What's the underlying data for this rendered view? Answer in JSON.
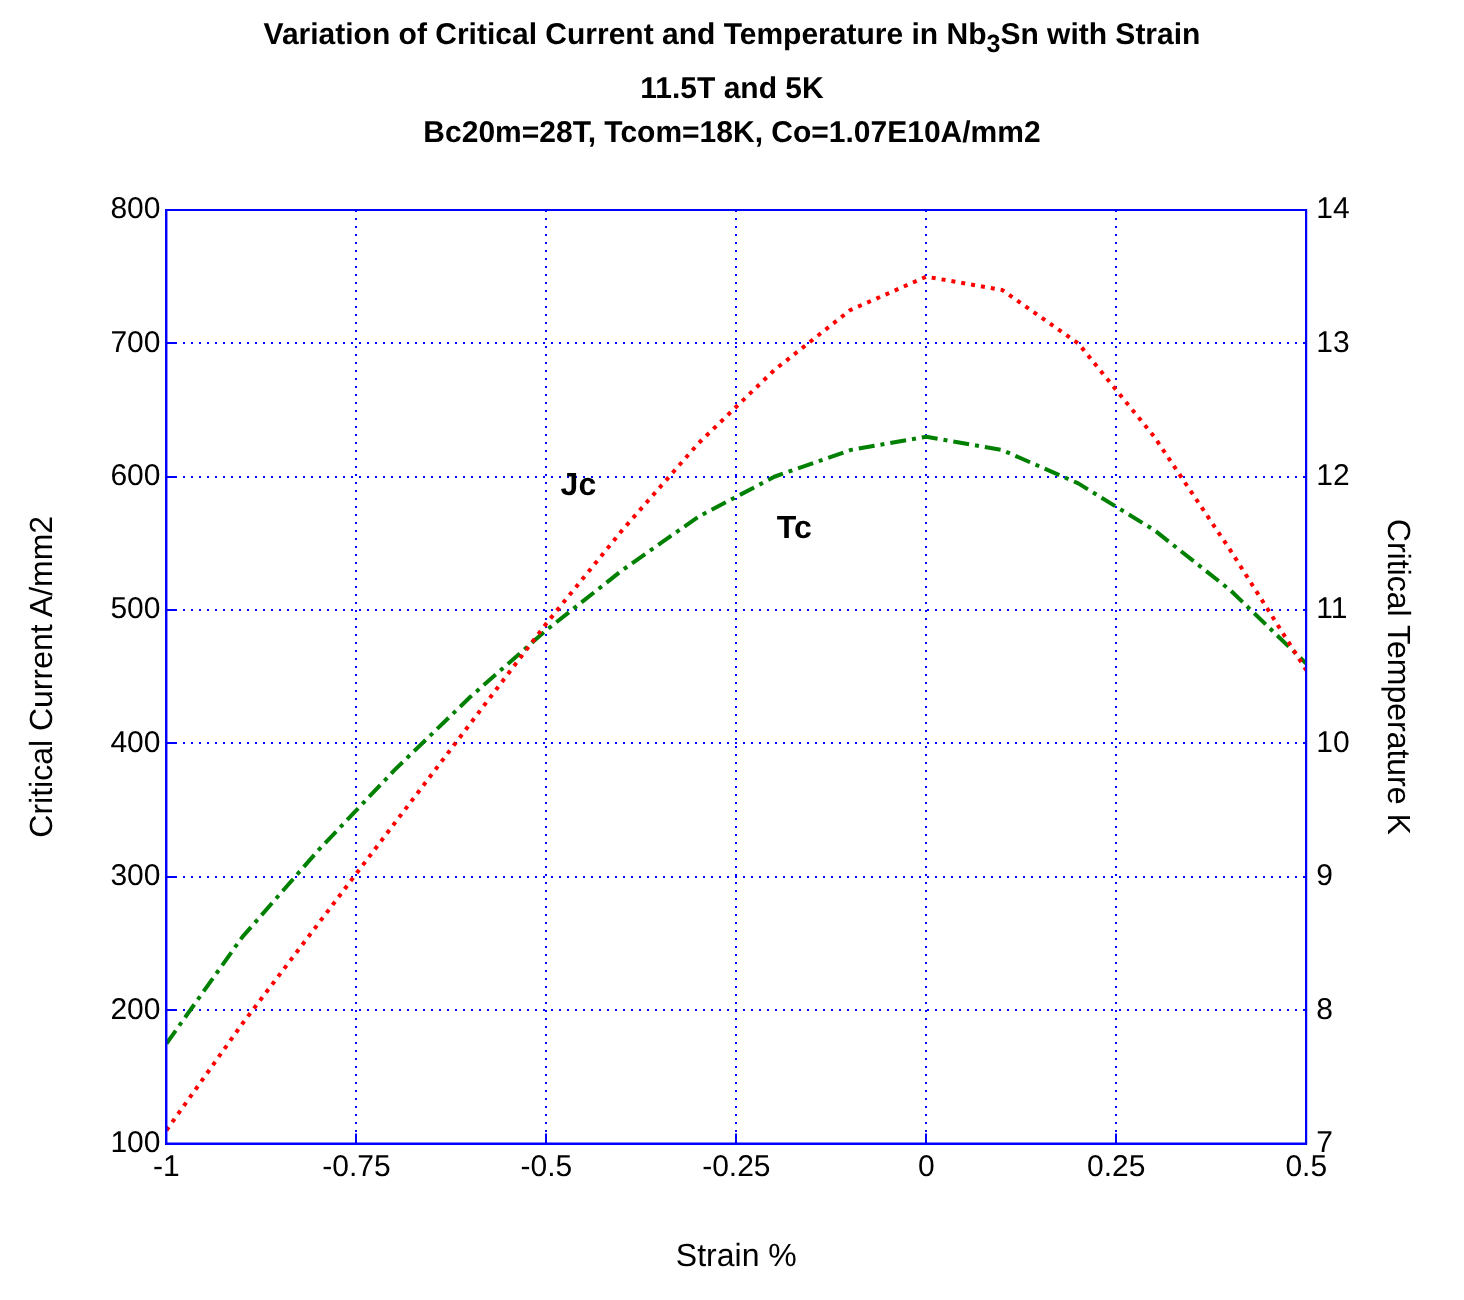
{
  "chart_data": {
    "type": "line",
    "title": "Variation of Critical Current and Temperature in Nb$_{3}$Sn with Strain",
    "subtitle": "11.5T and 5K\nBc20m=28T, Tcom=18K, Co=1.07E10A/mm2",
    "xlabel": "Strain %",
    "ylabel": "Critical Current A/mm2",
    "y2label": "Critical Temperature K",
    "x": [
      -1,
      -0.9,
      -0.8,
      -0.7,
      -0.6,
      -0.5,
      -0.4,
      -0.3,
      -0.2,
      -0.1,
      0,
      0.1,
      0.2,
      0.3,
      0.4,
      0.5
    ],
    "series": [
      {
        "name": "Jc",
        "color": "#ff0000",
        "line_style": "dotted",
        "values": [
          110,
          190,
          265,
          340,
          415,
          490,
          560,
          625,
          680,
          725,
          750,
          740,
          700,
          630,
          545,
          455
        ]
      },
      {
        "name": "Tc",
        "color": "#008000",
        "line_style": "dashdot",
        "axis": "y2",
        "values": [
          7.75,
          8.55,
          9.2,
          9.8,
          10.35,
          10.85,
          11.3,
          11.7,
          12.0,
          12.2,
          12.3,
          12.2,
          11.95,
          11.6,
          11.15,
          10.6
        ]
      }
    ],
    "xlim": [
      -1,
      0.5
    ],
    "xticks": [
      -1,
      -0.75,
      -0.5,
      -0.25,
      0,
      0.25,
      0.5
    ],
    "ylim": [
      100,
      800
    ],
    "yticks": [
      100,
      200,
      300,
      400,
      500,
      600,
      700,
      800
    ],
    "y2lim": [
      7,
      14
    ],
    "y2ticks": [
      7,
      8,
      9,
      10,
      11,
      12,
      13,
      14
    ],
    "grid": true,
    "legend": false,
    "marker": "none"
  }
}
